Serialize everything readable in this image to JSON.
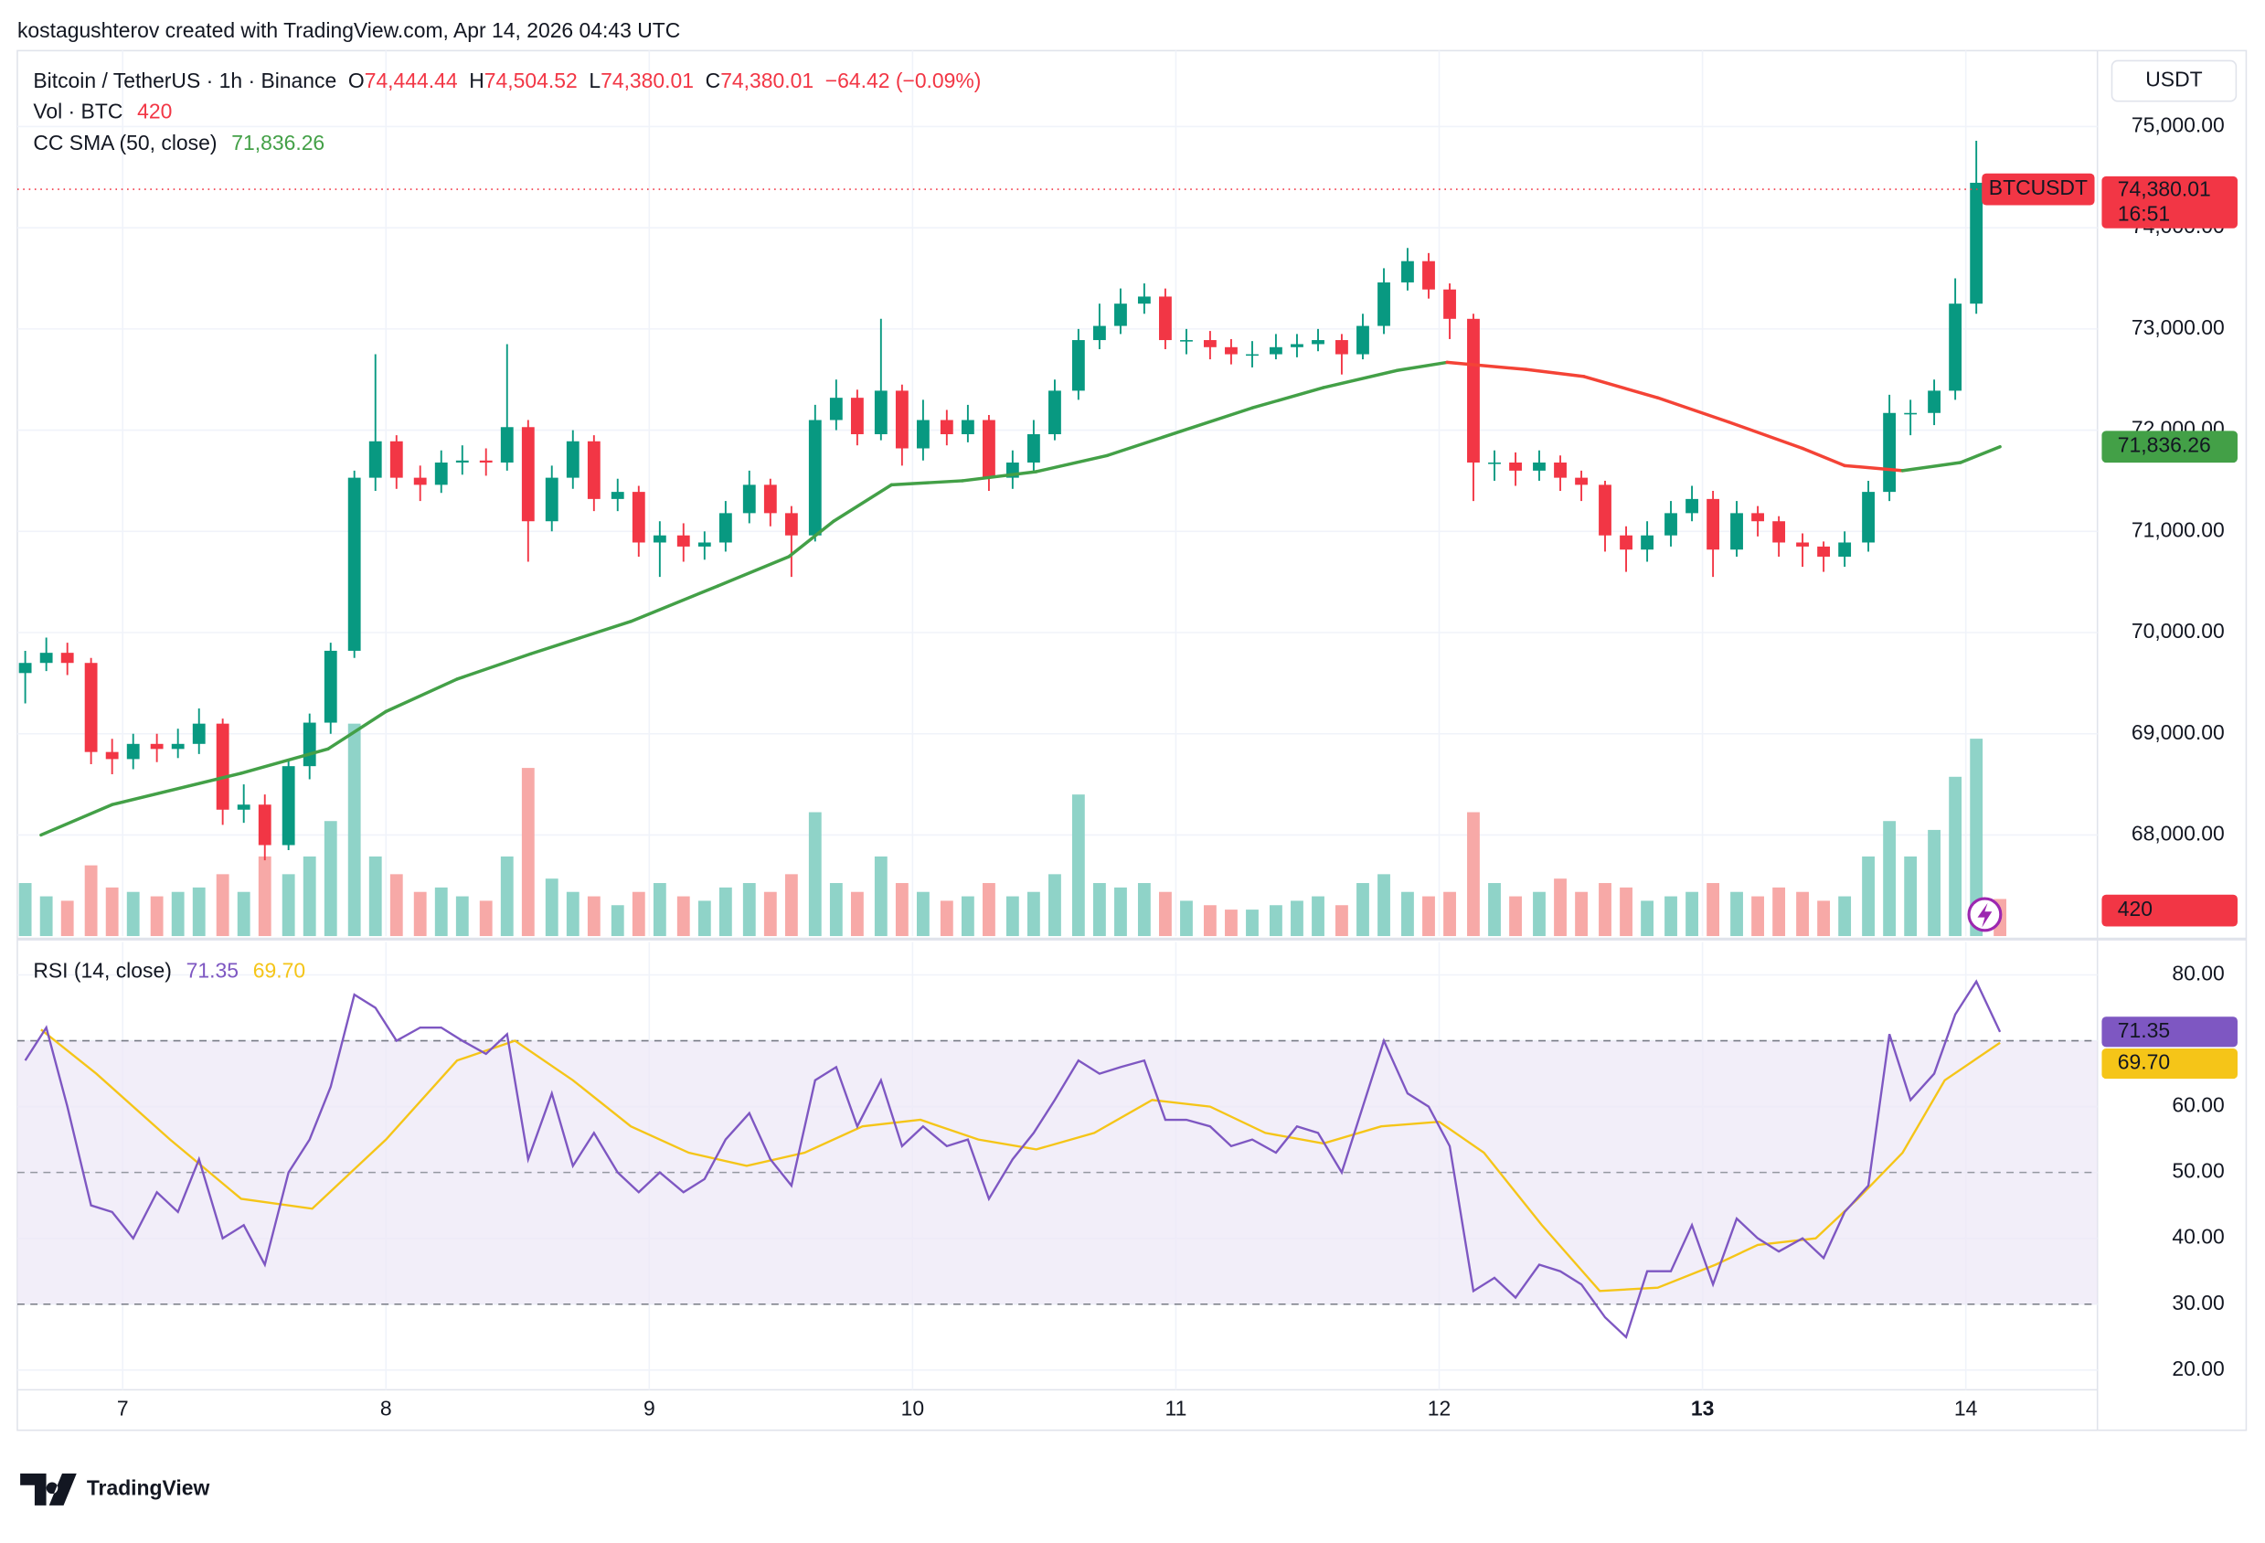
{
  "header": "kostagushterov created with TradingView.com, Apr 14, 2026 04:43 UTC",
  "footer": "TradingView",
  "chart_data": {
    "type": "candlestick",
    "title": "Bitcoin / TetherUS · 1h · Binance",
    "ohlc": [
      {
        "label": "O",
        "value": "74,444.44"
      },
      {
        "label": "H",
        "value": "74,504.52"
      },
      {
        "label": "L",
        "value": "74,380.01"
      },
      {
        "label": "C",
        "value": "74,380.01"
      }
    ],
    "change": "−64.42 (−0.09%)",
    "currency": "USDT",
    "symbol": "BTCUSDT",
    "countdown": "16:51",
    "last_label": "74,380.01",
    "up_color": "#089981",
    "down_color": "#f23645",
    "grid": true,
    "xlim": [
      6.6,
      14.5
    ],
    "xticks": [
      7,
      8,
      9,
      10,
      11,
      12,
      13,
      14
    ],
    "ylim": [
      67000,
      75750
    ],
    "yticks": [
      {
        "value": 68000,
        "label": "68,000.00"
      },
      {
        "value": 69000,
        "label": "69,000.00"
      },
      {
        "value": 70000,
        "label": "70,000.00"
      },
      {
        "value": 71000,
        "label": "71,000.00"
      },
      {
        "value": 72000,
        "label": "72,000.00"
      },
      {
        "value": 73000,
        "label": "73,000.00"
      },
      {
        "value": 74000,
        "label": "74,000.00"
      },
      {
        "value": 75000,
        "label": "75,000.00"
      }
    ],
    "x": [
      6.63,
      6.71,
      6.79,
      6.88,
      6.96,
      7.04,
      7.13,
      7.21,
      7.29,
      7.38,
      7.46,
      7.54,
      7.63,
      7.71,
      7.79,
      7.88,
      7.96,
      8.04,
      8.13,
      8.21,
      8.29,
      8.38,
      8.46,
      8.54,
      8.63,
      8.71,
      8.79,
      8.88,
      8.96,
      9.04,
      9.13,
      9.21,
      9.29,
      9.38,
      9.46,
      9.54,
      9.63,
      9.71,
      9.79,
      9.88,
      9.96,
      10.04,
      10.13,
      10.21,
      10.29,
      10.38,
      10.46,
      10.54,
      10.63,
      10.71,
      10.79,
      10.88,
      10.96,
      11.04,
      11.13,
      11.21,
      11.29,
      11.38,
      11.46,
      11.54,
      11.63,
      11.71,
      11.79,
      11.88,
      11.96,
      12.04,
      12.13,
      12.21,
      12.29,
      12.38,
      12.46,
      12.54,
      12.63,
      12.71,
      12.79,
      12.88,
      12.96,
      13.04,
      13.13,
      13.21,
      13.29,
      13.38,
      13.46,
      13.54,
      13.63,
      13.71,
      13.79,
      13.88,
      13.96,
      14.04,
      14.13
    ],
    "open": [
      69600,
      69700,
      69800,
      69700,
      68820,
      68750,
      68900,
      68850,
      68900,
      69100,
      68250,
      68300,
      67900,
      68680,
      69110,
      69820,
      71530,
      71890,
      71530,
      71460,
      71680,
      71700,
      71680,
      72030,
      71100,
      71530,
      71890,
      71320,
      71390,
      70890,
      70960,
      70850,
      70890,
      71180,
      71460,
      71180,
      70960,
      72100,
      72320,
      71960,
      72390,
      71820,
      72100,
      71960,
      72100,
      71530,
      71680,
      71960,
      72390,
      72890,
      73030,
      73250,
      73320,
      72890,
      72890,
      72820,
      72750,
      72750,
      72820,
      72850,
      72890,
      72750,
      73030,
      73460,
      73670,
      73390,
      73100,
      71680,
      71680,
      71600,
      71680,
      71530,
      71460,
      70960,
      70820,
      70960,
      71180,
      71320,
      70820,
      71180,
      71100,
      70890,
      70850,
      70750,
      70890,
      71390,
      72170,
      72170,
      72390,
      73250,
      74444.44
    ],
    "high": [
      69820,
      69950,
      69900,
      69750,
      68950,
      69000,
      69000,
      69050,
      69250,
      69150,
      68500,
      68400,
      68750,
      69200,
      69900,
      71600,
      72750,
      71950,
      71650,
      71800,
      71850,
      71820,
      72850,
      72100,
      71650,
      72000,
      71950,
      71520,
      71450,
      71100,
      71080,
      71000,
      71300,
      71600,
      71520,
      71250,
      72250,
      72500,
      72400,
      73100,
      72450,
      72300,
      72200,
      72250,
      72150,
      71800,
      72100,
      72500,
      73000,
      73250,
      73400,
      73450,
      73400,
      73000,
      72980,
      72900,
      72880,
      72950,
      72950,
      73000,
      72950,
      73150,
      73600,
      73800,
      73750,
      73450,
      73150,
      71800,
      71780,
      71800,
      71750,
      71600,
      71500,
      71050,
      71100,
      71300,
      71450,
      71400,
      71300,
      71250,
      71150,
      70980,
      70900,
      71000,
      71500,
      72350,
      72300,
      72500,
      73500,
      74860,
      74504.52
    ],
    "low": [
      69300,
      69620,
      69580,
      68700,
      68600,
      68650,
      68720,
      68760,
      68800,
      68100,
      68120,
      67750,
      67850,
      68550,
      69000,
      69750,
      71400,
      71420,
      71300,
      71380,
      71560,
      71550,
      71600,
      70700,
      71000,
      71420,
      71200,
      71200,
      70750,
      70550,
      70700,
      70720,
      70800,
      71080,
      71050,
      70550,
      70900,
      72000,
      71850,
      71900,
      71650,
      71700,
      71850,
      71880,
      71400,
      71420,
      71600,
      71900,
      72300,
      72800,
      72950,
      73150,
      72800,
      72750,
      72700,
      72650,
      72620,
      72700,
      72720,
      72780,
      72550,
      72700,
      72950,
      73380,
      73300,
      72900,
      71300,
      71500,
      71450,
      71500,
      71400,
      71300,
      70800,
      70600,
      70700,
      70850,
      71100,
      70550,
      70750,
      70950,
      70750,
      70650,
      70600,
      70650,
      70800,
      71300,
      71950,
      72050,
      72300,
      73150,
      74380.01
    ],
    "close": [
      69700,
      69800,
      69700,
      68820,
      68750,
      68900,
      68850,
      68900,
      69100,
      68250,
      68300,
      67900,
      68680,
      69110,
      69820,
      71530,
      71890,
      71530,
      71460,
      71680,
      71700,
      71680,
      72030,
      71100,
      71530,
      71890,
      71320,
      71390,
      70890,
      70960,
      70850,
      70890,
      71180,
      71460,
      71180,
      70960,
      72100,
      72320,
      71960,
      72390,
      71820,
      72100,
      71960,
      72100,
      71530,
      71680,
      71960,
      72390,
      72890,
      73030,
      73250,
      73320,
      72890,
      72890,
      72820,
      72750,
      72750,
      72820,
      72850,
      72890,
      72750,
      73030,
      73460,
      73670,
      73390,
      73100,
      71680,
      71680,
      71600,
      71680,
      71530,
      71460,
      70960,
      70820,
      70960,
      71180,
      71320,
      70820,
      71180,
      71100,
      70890,
      70850,
      70750,
      70890,
      71390,
      72170,
      72170,
      72390,
      73250,
      74444.44,
      74380.01
    ],
    "volume": {
      "name": "Vol · BTC",
      "ylim": [
        0,
        10000
      ],
      "up_color": "#8fd3c8",
      "down_color": "#f7a9a7",
      "values": [
        600,
        450,
        400,
        800,
        550,
        500,
        450,
        500,
        550,
        700,
        500,
        900,
        700,
        900,
        1300,
        2400,
        900,
        700,
        500,
        550,
        450,
        400,
        900,
        1900,
        650,
        500,
        450,
        350,
        500,
        600,
        450,
        400,
        550,
        600,
        500,
        700,
        1400,
        600,
        500,
        900,
        600,
        500,
        400,
        450,
        600,
        450,
        500,
        700,
        1600,
        600,
        550,
        600,
        500,
        400,
        350,
        300,
        300,
        350,
        400,
        450,
        350,
        600,
        700,
        500,
        450,
        500,
        1400,
        600,
        450,
        500,
        650,
        500,
        600,
        550,
        400,
        450,
        500,
        600,
        500,
        450,
        550,
        500,
        400,
        450,
        900,
        1300,
        900,
        1200,
        1800,
        2230,
        420
      ]
    },
    "sma": {
      "name": "CC SMA (50, close)",
      "last_label": "71,836.26",
      "up_color": "#43a047",
      "down_color": "#f44336",
      "x": [
        6.69,
        6.96,
        7.45,
        7.78,
        8.0,
        8.27,
        8.55,
        8.93,
        9.26,
        9.53,
        9.7,
        9.92,
        10.19,
        10.47,
        10.74,
        11.02,
        11.29,
        11.56,
        11.84,
        12.03,
        12.33,
        12.55,
        12.83,
        13.1,
        13.38,
        13.54,
        13.76,
        13.98,
        14.13
      ],
      "values": [
        68000,
        68300,
        68610,
        68850,
        69220,
        69540,
        69790,
        70110,
        70460,
        70750,
        71100,
        71460,
        71500,
        71590,
        71750,
        71990,
        72220,
        72420,
        72590,
        72670,
        72600,
        72530,
        72320,
        72080,
        71820,
        71650,
        71600,
        71680,
        71836.26
      ]
    },
    "rsi": {
      "name": "RSI (14, close)",
      "color": "#7e57c2",
      "band_color": "#ede7f6",
      "ylim": [
        17,
        85
      ],
      "yticks": [
        {
          "value": 20,
          "label": "20.00"
        },
        {
          "value": 30,
          "label": "30.00"
        },
        {
          "value": 40,
          "label": "40.00"
        },
        {
          "value": 50,
          "label": "50.00"
        },
        {
          "value": 60,
          "label": "60.00"
        },
        {
          "value": 70,
          "label": "70.00"
        },
        {
          "value": 80,
          "label": "80.00"
        }
      ],
      "bands": [
        30,
        70
      ],
      "midline": 50,
      "values": [
        67,
        72,
        60,
        45,
        44,
        40,
        47,
        44,
        52,
        40,
        42,
        36,
        50,
        55,
        63,
        77,
        75,
        70,
        72,
        72,
        70,
        68,
        71,
        52,
        62,
        51,
        56,
        50,
        47,
        50,
        47,
        49,
        55,
        59,
        52,
        48,
        64,
        66,
        57,
        64,
        54,
        57,
        54,
        55,
        46,
        52,
        56,
        61,
        67,
        65,
        66,
        67,
        58,
        58,
        57,
        54,
        55,
        53,
        57,
        56,
        50,
        60,
        70,
        62,
        60,
        54,
        32,
        34,
        31,
        36,
        35,
        33,
        28,
        25,
        35,
        35,
        42,
        33,
        43,
        40,
        38,
        40,
        37,
        44,
        48,
        71,
        61,
        65,
        74,
        79,
        71.35
      ],
      "ma": {
        "color": "#f5c518",
        "last_label": "69.70",
        "x": [
          6.69,
          6.9,
          7.18,
          7.45,
          7.72,
          8.0,
          8.27,
          8.49,
          8.71,
          8.93,
          9.15,
          9.37,
          9.59,
          9.81,
          10.03,
          10.25,
          10.47,
          10.69,
          10.91,
          11.13,
          11.34,
          11.56,
          11.78,
          12.0,
          12.17,
          12.39,
          12.61,
          12.83,
          13.05,
          13.21,
          13.43,
          13.59,
          13.76,
          13.92,
          14.13
        ],
        "values": [
          71.7,
          65,
          55,
          46,
          44.5,
          55,
          67,
          70,
          64,
          57,
          53,
          51,
          53,
          57,
          58,
          55,
          53.5,
          56,
          61,
          60,
          56,
          54.4,
          57,
          57.7,
          53,
          42,
          32,
          32.5,
          36,
          39,
          40,
          46,
          53,
          64,
          69.7
        ]
      }
    }
  }
}
